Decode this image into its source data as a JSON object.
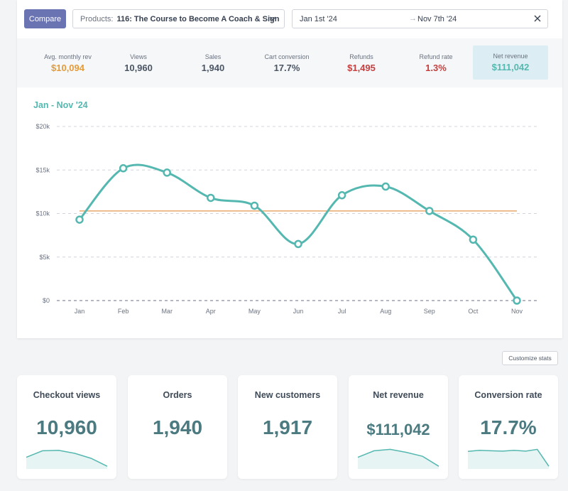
{
  "controls": {
    "compare_label": "Compare",
    "products_prefix": "Products:",
    "products_value": "116: The Course to Become A Coach & Sign",
    "date_start": "Jan 1st '24",
    "date_separator": "→",
    "date_end": "Nov 7th '24"
  },
  "stats": [
    {
      "label": "Avg. monthly rev",
      "value": "$10,094",
      "color": "#e39b3b"
    },
    {
      "label": "Views",
      "value": "10,960",
      "color": "#4b5563"
    },
    {
      "label": "Sales",
      "value": "1,940",
      "color": "#4b5563"
    },
    {
      "label": "Cart conversion",
      "value": "17.7%",
      "color": "#4b5563"
    },
    {
      "label": "Refunds",
      "value": "$1,495",
      "color": "#c53f3f"
    },
    {
      "label": "Refund rate",
      "value": "1.3%",
      "color": "#c53f3f"
    },
    {
      "label": "Net revenue",
      "value": "$111,042",
      "color": "#55b8b0"
    }
  ],
  "chart_title": "Jan - Nov '24",
  "chart_data": {
    "type": "line",
    "title": "Jan - Nov '24",
    "categories": [
      "Jan",
      "Feb",
      "Mar",
      "Apr",
      "May",
      "Jun",
      "Jul",
      "Aug",
      "Sep",
      "Oct",
      "Nov"
    ],
    "series": [
      {
        "values": [
          9300,
          15200,
          14700,
          11800,
          10900,
          6500,
          12100,
          13100,
          10300,
          7000,
          0
        ],
        "color": "#55b8b0"
      }
    ],
    "average_line": {
      "value": 10300,
      "color": "#e8a76b"
    },
    "y_ticks": [
      "$0",
      "$5k",
      "$10k",
      "$15k",
      "$20k"
    ],
    "y_tick_values": [
      0,
      5000,
      10000,
      15000,
      20000
    ],
    "ylim": [
      0,
      20000
    ],
    "grid": true
  },
  "customize_label": "Customize stats",
  "cards": [
    {
      "title": "Checkout views",
      "value": "10,960",
      "spark": [
        0.55,
        0.88,
        0.9,
        0.75,
        0.5,
        0.1
      ]
    },
    {
      "title": "Orders",
      "value": "1,940",
      "spark": []
    },
    {
      "title": "New customers",
      "value": "1,917",
      "spark": []
    },
    {
      "title": "Net revenue",
      "value": "$111,042",
      "spark": [
        0.55,
        0.88,
        0.95,
        0.8,
        0.6,
        0.1
      ]
    },
    {
      "title": "Conversion rate",
      "value": "17.7%",
      "spark": [
        0.85,
        0.9,
        0.88,
        0.86,
        0.9,
        0.86,
        0.95,
        0.1
      ]
    }
  ]
}
